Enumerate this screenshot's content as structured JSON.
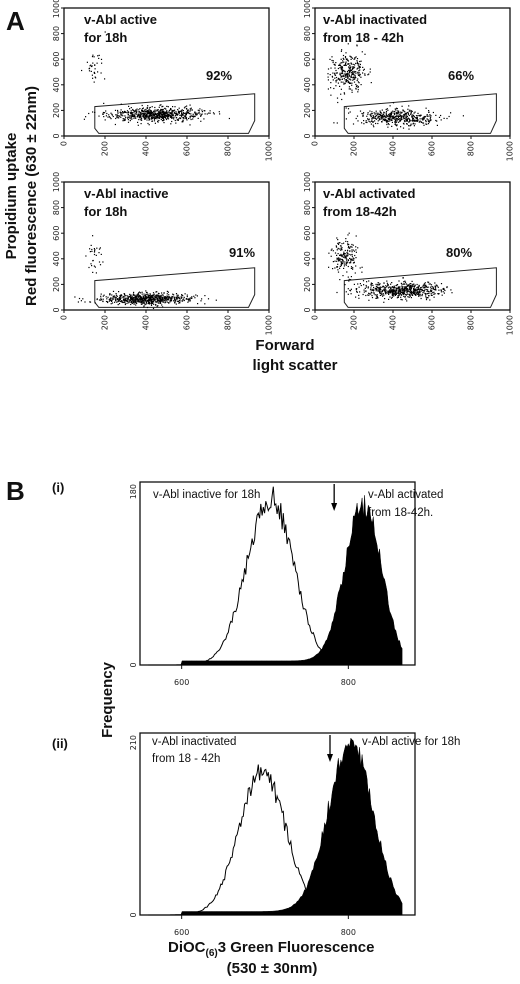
{
  "panel_a": {
    "letter": "A",
    "ylabel_line1": "Propidium uptake",
    "ylabel_line2": "Red fluorescence (630 ± 22nm)",
    "xlabel_line1": "Forward",
    "xlabel_line2": "light scatter"
  },
  "panel_b": {
    "letter": "B",
    "ylabel": "Frequency",
    "xlabel_line1": "DiOC",
    "xlabel_sub": "(6)",
    "xlabel_line1_rest": "3 Green Fluorescence",
    "xlabel_line2": "(530 ± 30nm)"
  },
  "chart_data": [
    {
      "type": "scatter",
      "label_line1": "v-Abl active",
      "label_line2": "for 18h",
      "gate_percent": "92%",
      "xlim": [
        0,
        1000
      ],
      "ylim": [
        0,
        1000
      ],
      "x_ticks": [
        "0",
        "200",
        "400",
        "600",
        "800",
        "1000"
      ],
      "y_ticks": [
        "0",
        "200",
        "400",
        "600",
        "800",
        "1000"
      ],
      "clusters": [
        {
          "cx": 450,
          "cy": 170,
          "sx": 110,
          "sy": 28,
          "n": 700
        },
        {
          "cx": 150,
          "cy": 560,
          "sx": 25,
          "sy": 60,
          "n": 35
        }
      ]
    },
    {
      "type": "scatter",
      "label_line1": "v-Abl inactivated",
      "label_line2": "from 18 - 42h",
      "gate_percent": "66%",
      "xlim": [
        0,
        1000
      ],
      "ylim": [
        0,
        1000
      ],
      "x_ticks": [
        "0",
        "200",
        "400",
        "600",
        "800",
        "1000"
      ],
      "y_ticks": [
        "0",
        "200",
        "400",
        "600",
        "800",
        "1000"
      ],
      "clusters": [
        {
          "cx": 420,
          "cy": 150,
          "sx": 100,
          "sy": 30,
          "n": 450
        },
        {
          "cx": 160,
          "cy": 500,
          "sx": 45,
          "sy": 70,
          "n": 300
        }
      ]
    },
    {
      "type": "scatter",
      "label_line1": "v-Abl inactive",
      "label_line2": "for 18h",
      "gate_percent": "91%",
      "xlim": [
        0,
        1000
      ],
      "ylim": [
        0,
        1000
      ],
      "x_ticks": [
        "0",
        "200",
        "400",
        "600",
        "800",
        "1000"
      ],
      "y_ticks": [
        "0",
        "200",
        "400",
        "600",
        "800",
        "1000"
      ],
      "clusters": [
        {
          "cx": 400,
          "cy": 90,
          "sx": 110,
          "sy": 22,
          "n": 700
        },
        {
          "cx": 150,
          "cy": 420,
          "sx": 25,
          "sy": 60,
          "n": 30
        }
      ]
    },
    {
      "type": "scatter",
      "label_line1": "v-Abl activated",
      "label_line2": "from 18-42h",
      "gate_percent": "80%",
      "xlim": [
        0,
        1000
      ],
      "ylim": [
        0,
        1000
      ],
      "x_ticks": [
        "0",
        "200",
        "400",
        "600",
        "800",
        "1000"
      ],
      "y_ticks": [
        "0",
        "200",
        "400",
        "600",
        "800",
        "1000"
      ],
      "clusters": [
        {
          "cx": 440,
          "cy": 160,
          "sx": 110,
          "sy": 30,
          "n": 600
        },
        {
          "cx": 150,
          "cy": 420,
          "sx": 35,
          "sy": 70,
          "n": 180
        }
      ]
    },
    {
      "type": "area",
      "tag": "(i)",
      "xlim": [
        550,
        880
      ],
      "ylim": [
        0,
        180
      ],
      "y_max_label": "180",
      "x_ticks": [
        600,
        800
      ],
      "arrow_x": 783,
      "open_label": "v-Abl inactive for 18h",
      "filled_label_line1": "v-Abl activated",
      "filled_label_line2": "from 18-42h.",
      "open_series": {
        "mean": 706,
        "sd": 28,
        "peak": 165
      },
      "filled_series": {
        "mean": 818,
        "sd": 22,
        "peak": 158
      }
    },
    {
      "type": "area",
      "tag": "(ii)",
      "xlim": [
        550,
        880
      ],
      "ylim": [
        0,
        210
      ],
      "y_max_label": "210",
      "x_ticks": [
        600,
        800
      ],
      "arrow_x": 778,
      "open_label_line1": "v-Abl inactivated",
      "open_label_line2": "from 18 - 42h",
      "filled_label": "v-Abl active for 18h",
      "open_series": {
        "mean": 697,
        "sd": 28,
        "peak": 165
      },
      "filled_series": {
        "mean": 803,
        "sd": 27,
        "peak": 195
      }
    }
  ]
}
